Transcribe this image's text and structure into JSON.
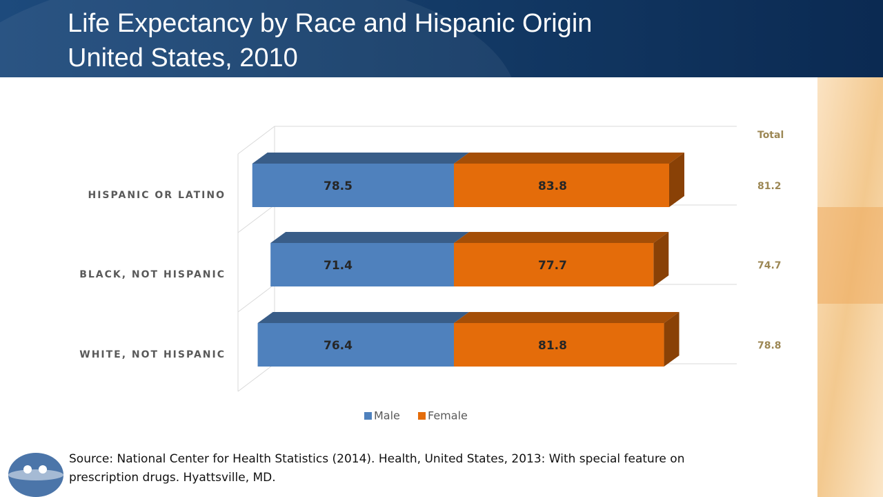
{
  "chart_data": {
    "type": "bar",
    "title": "Life Expectancy by Race and Hispanic Origin",
    "subtitle": "United States, 2010",
    "categories": [
      "HISPANIC OR LATINO",
      "BLACK, NOT HISPANIC",
      "WHITE, NOT HISPANIC"
    ],
    "series": [
      {
        "name": "Male",
        "color": "#4f81bd",
        "values": [
          78.5,
          71.4,
          76.4
        ]
      },
      {
        "name": "Female",
        "color": "#e46c0a",
        "values": [
          83.8,
          77.7,
          81.8
        ]
      }
    ],
    "totals": {
      "label": "Total",
      "values": [
        81.2,
        74.7,
        78.8
      ]
    },
    "source": "Source: National Center for Health Statistics (2014). Health, United States, 2013: With special feature on prescription drugs. Hyattsville, MD."
  }
}
